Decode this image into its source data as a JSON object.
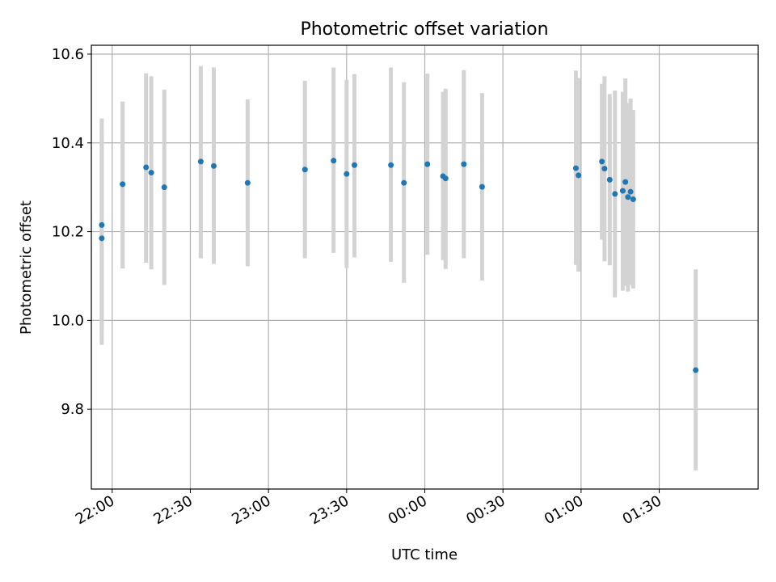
{
  "chart_data": {
    "type": "scatter",
    "title": "Photometric offset variation",
    "xlabel": "UTC time",
    "ylabel": "Photometric offset",
    "x_axis_kind": "time",
    "xlim": [
      "21:52",
      "02:08"
    ],
    "ylim": [
      9.62,
      10.62
    ],
    "x_ticks": [
      "22:00",
      "22:30",
      "23:00",
      "23:30",
      "00:00",
      "00:30",
      "01:00",
      "01:30"
    ],
    "y_ticks": [
      9.8,
      10.0,
      10.2,
      10.4,
      10.6
    ],
    "grid": true,
    "marker_color": "#1f77b4",
    "errorbar_color": "#d3d3d3",
    "x_tick_label_rotation": "30 degrees",
    "points": [
      {
        "t": "21:56",
        "y": 10.185,
        "lo": 9.945,
        "hi": 10.425
      },
      {
        "t": "21:56",
        "y": 10.215,
        "lo": 9.975,
        "hi": 10.455
      },
      {
        "t": "22:04",
        "y": 10.307,
        "lo": 10.117,
        "hi": 10.493
      },
      {
        "t": "22:04",
        "y": 10.307,
        "lo": 10.117,
        "hi": 10.493
      },
      {
        "t": "22:13",
        "y": 10.345,
        "lo": 10.13,
        "hi": 10.557
      },
      {
        "t": "22:15",
        "y": 10.333,
        "lo": 10.115,
        "hi": 10.55
      },
      {
        "t": "22:20",
        "y": 10.3,
        "lo": 10.08,
        "hi": 10.52
      },
      {
        "t": "22:34",
        "y": 10.358,
        "lo": 10.14,
        "hi": 10.573
      },
      {
        "t": "22:39",
        "y": 10.348,
        "lo": 10.127,
        "hi": 10.57
      },
      {
        "t": "22:52",
        "y": 10.31,
        "lo": 10.122,
        "hi": 10.498
      },
      {
        "t": "23:14",
        "y": 10.34,
        "lo": 10.14,
        "hi": 10.54
      },
      {
        "t": "23:25",
        "y": 10.36,
        "lo": 10.152,
        "hi": 10.57
      },
      {
        "t": "23:30",
        "y": 10.33,
        "lo": 10.118,
        "hi": 10.542
      },
      {
        "t": "23:33",
        "y": 10.35,
        "lo": 10.142,
        "hi": 10.555
      },
      {
        "t": "23:47",
        "y": 10.35,
        "lo": 10.132,
        "hi": 10.57
      },
      {
        "t": "23:52",
        "y": 10.31,
        "lo": 10.085,
        "hi": 10.537
      },
      {
        "t": "00:01",
        "y": 10.352,
        "lo": 10.148,
        "hi": 10.556
      },
      {
        "t": "00:07",
        "y": 10.325,
        "lo": 10.136,
        "hi": 10.515
      },
      {
        "t": "00:08",
        "y": 10.32,
        "lo": 10.116,
        "hi": 10.522
      },
      {
        "t": "00:15",
        "y": 10.352,
        "lo": 10.14,
        "hi": 10.564
      },
      {
        "t": "00:22",
        "y": 10.301,
        "lo": 10.09,
        "hi": 10.512
      },
      {
        "t": "01:08",
        "y": 10.358,
        "lo": 10.182,
        "hi": 10.533
      },
      {
        "t": "01:11",
        "y": 10.317,
        "lo": 10.124,
        "hi": 10.51
      },
      {
        "t": "00:58",
        "y": 10.343,
        "lo": 10.125,
        "hi": 10.563
      },
      {
        "t": "00:59",
        "y": 10.327,
        "lo": 10.11,
        "hi": 10.546
      },
      {
        "t": "01:09",
        "y": 10.342,
        "lo": 10.133,
        "hi": 10.55
      },
      {
        "t": "01:13",
        "y": 10.285,
        "lo": 10.052,
        "hi": 10.518
      },
      {
        "t": "01:16",
        "y": 10.292,
        "lo": 10.067,
        "hi": 10.515
      },
      {
        "t": "01:17",
        "y": 10.312,
        "lo": 10.078,
        "hi": 10.545
      },
      {
        "t": "01:18",
        "y": 10.278,
        "lo": 10.065,
        "hi": 10.49
      },
      {
        "t": "01:19",
        "y": 10.29,
        "lo": 10.08,
        "hi": 10.5
      },
      {
        "t": "01:20",
        "y": 10.273,
        "lo": 10.072,
        "hi": 10.474
      },
      {
        "t": "01:44",
        "y": 9.888,
        "lo": 9.662,
        "hi": 10.115
      }
    ]
  }
}
